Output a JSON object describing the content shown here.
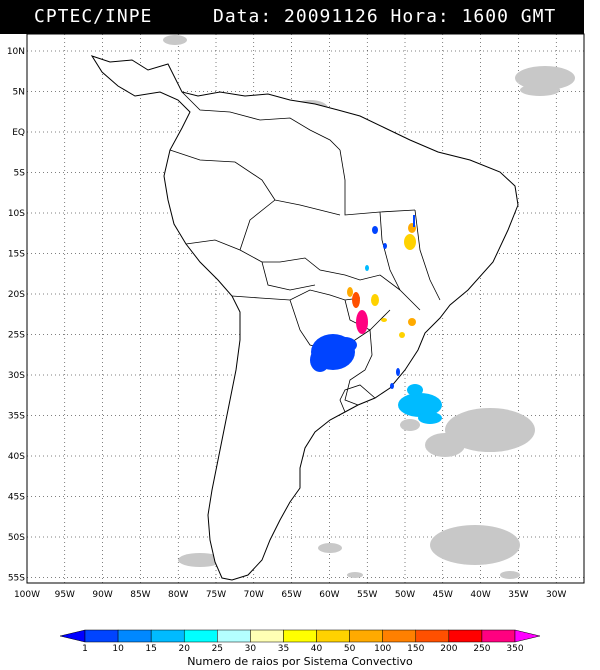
{
  "header": {
    "source": "CPTEC/INPE",
    "datetime": "Data: 20091126 Hora: 1600 GMT"
  },
  "map": {
    "lat_labels": [
      "10N",
      "5N",
      "EQ",
      "5S",
      "10S",
      "15S",
      "20S",
      "25S",
      "30S",
      "35S",
      "40S",
      "45S",
      "50S",
      "55S"
    ],
    "lon_labels": [
      "100W",
      "95W",
      "90W",
      "85W",
      "80W",
      "75W",
      "70W",
      "65W",
      "60W",
      "55W",
      "50W",
      "45W",
      "40W",
      "35W",
      "30W"
    ],
    "land_color": "#ffffff",
    "border_color": "#000000",
    "cloud_color": "#c8c8c8"
  },
  "legend": {
    "title": "Numero de raios por Sistema Convectivo",
    "values": [
      "1",
      "10",
      "15",
      "20",
      "25",
      "30",
      "35",
      "40",
      "50",
      "100",
      "150",
      "200",
      "250",
      "350"
    ],
    "colors": [
      "#0000ff",
      "#0044ff",
      "#0088ff",
      "#00bbff",
      "#00ffff",
      "#b4ffff",
      "#ffffb4",
      "#ffff00",
      "#ffd200",
      "#ffaa00",
      "#ff8000",
      "#ff5000",
      "#ff0000",
      "#ff0080",
      "#ff00ff"
    ]
  },
  "storms": [
    {
      "name": "north-parana",
      "color": "#0044ff"
    },
    {
      "name": "bahia-yellow",
      "color": "#ffd200"
    },
    {
      "name": "mato-grosso-magenta",
      "color": "#ff0080"
    },
    {
      "name": "argentina-blue",
      "color": "#0044ff"
    },
    {
      "name": "uruguay-cyan",
      "color": "#00bbff"
    }
  ]
}
